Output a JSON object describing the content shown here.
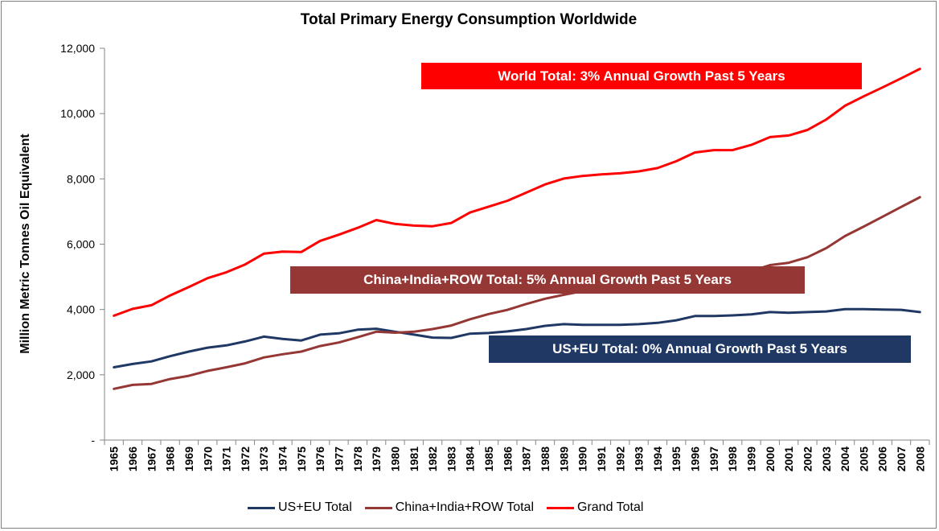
{
  "chart_data": {
    "type": "line",
    "title": "Total Primary Energy Consumption Worldwide",
    "ylabel": "Million Metric Tonnes Oil Equivalent",
    "xlabel": "",
    "ylim": [
      0,
      12000
    ],
    "y_ticks": [
      "-",
      "2,000",
      "4,000",
      "6,000",
      "8,000",
      "10,000",
      "12,000"
    ],
    "y_tick_values": [
      0,
      2000,
      4000,
      6000,
      8000,
      10000,
      12000
    ],
    "grid": false,
    "legend_position": "bottom",
    "categories": [
      "1965",
      "1966",
      "1967",
      "1968",
      "1969",
      "1970",
      "1971",
      "1972",
      "1973",
      "1974",
      "1975",
      "1976",
      "1977",
      "1978",
      "1979",
      "1980",
      "1981",
      "1982",
      "1983",
      "1984",
      "1985",
      "1986",
      "1987",
      "1988",
      "1989",
      "1990",
      "1991",
      "1992",
      "1993",
      "1994",
      "1995",
      "1996",
      "1997",
      "1998",
      "1999",
      "2000",
      "2001",
      "2002",
      "2003",
      "2004",
      "2005",
      "2006",
      "2007",
      "2008"
    ],
    "series": [
      {
        "name": "US+EU Total",
        "color": "#1f3864",
        "values": [
          2230,
          2330,
          2410,
          2570,
          2710,
          2830,
          2900,
          3020,
          3170,
          3100,
          3050,
          3230,
          3270,
          3380,
          3410,
          3320,
          3230,
          3140,
          3130,
          3260,
          3280,
          3330,
          3400,
          3500,
          3550,
          3530,
          3530,
          3530,
          3550,
          3590,
          3670,
          3800,
          3800,
          3820,
          3850,
          3920,
          3900,
          3920,
          3940,
          4010,
          4010,
          4000,
          3990,
          3920
        ]
      },
      {
        "name": "China+India+ROW  Total",
        "color": "#953735",
        "values": [
          1570,
          1690,
          1720,
          1870,
          1970,
          2120,
          2230,
          2350,
          2530,
          2630,
          2710,
          2880,
          2990,
          3150,
          3320,
          3290,
          3320,
          3400,
          3510,
          3700,
          3860,
          3990,
          4170,
          4330,
          4450,
          4560,
          4640,
          4700,
          4740,
          4780,
          4890,
          5020,
          5100,
          5080,
          5180,
          5360,
          5430,
          5600,
          5880,
          6250,
          6540,
          6840,
          7140,
          7440
        ]
      },
      {
        "name": "Grand Total",
        "color": "#ff0000",
        "values": [
          3810,
          4020,
          4130,
          4430,
          4690,
          4960,
          5140,
          5380,
          5710,
          5770,
          5760,
          6100,
          6290,
          6500,
          6740,
          6620,
          6570,
          6550,
          6650,
          6970,
          7150,
          7330,
          7580,
          7830,
          8010,
          8090,
          8140,
          8170,
          8230,
          8330,
          8540,
          8810,
          8880,
          8880,
          9040,
          9280,
          9330,
          9500,
          9820,
          10240,
          10530,
          10800,
          11080,
          11370
        ]
      }
    ],
    "annotations": [
      {
        "text": "World Total:  3% Annual Growth Past 5 Years",
        "color": "#ff0000"
      },
      {
        "text": "China+India+ROW  Total:  5% Annual Growth Past 5 Years",
        "color": "#953735"
      },
      {
        "text": "US+EU Total:  0% Annual Growth Past 5 Years",
        "color": "#1f3864"
      }
    ]
  }
}
